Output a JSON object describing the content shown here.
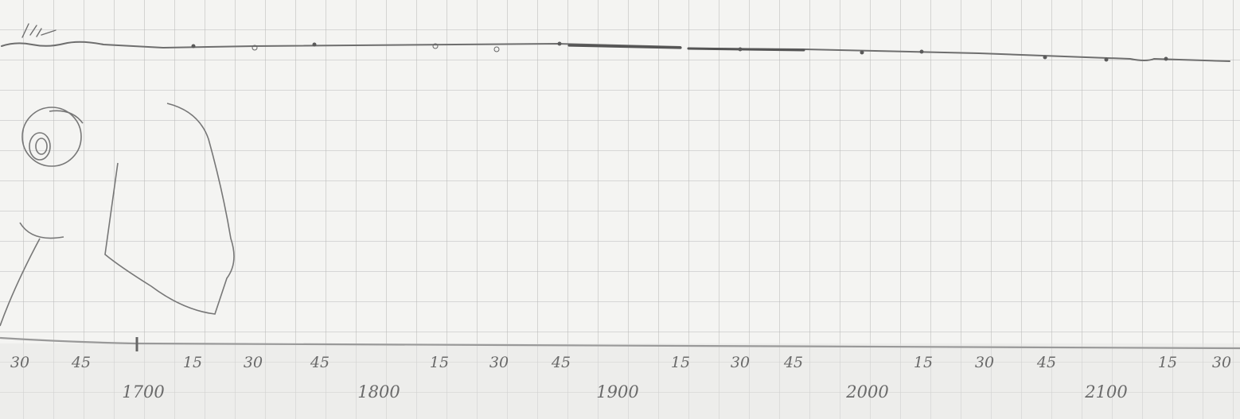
{
  "sketch": {
    "minute_labels": [
      "30",
      "45",
      "15",
      "30",
      "45",
      "15",
      "30",
      "45",
      "15",
      "30",
      "45",
      "15",
      "30",
      "45",
      "15",
      "30"
    ],
    "year_labels": [
      "1700",
      "1800",
      "1900",
      "2000",
      "2100"
    ]
  }
}
